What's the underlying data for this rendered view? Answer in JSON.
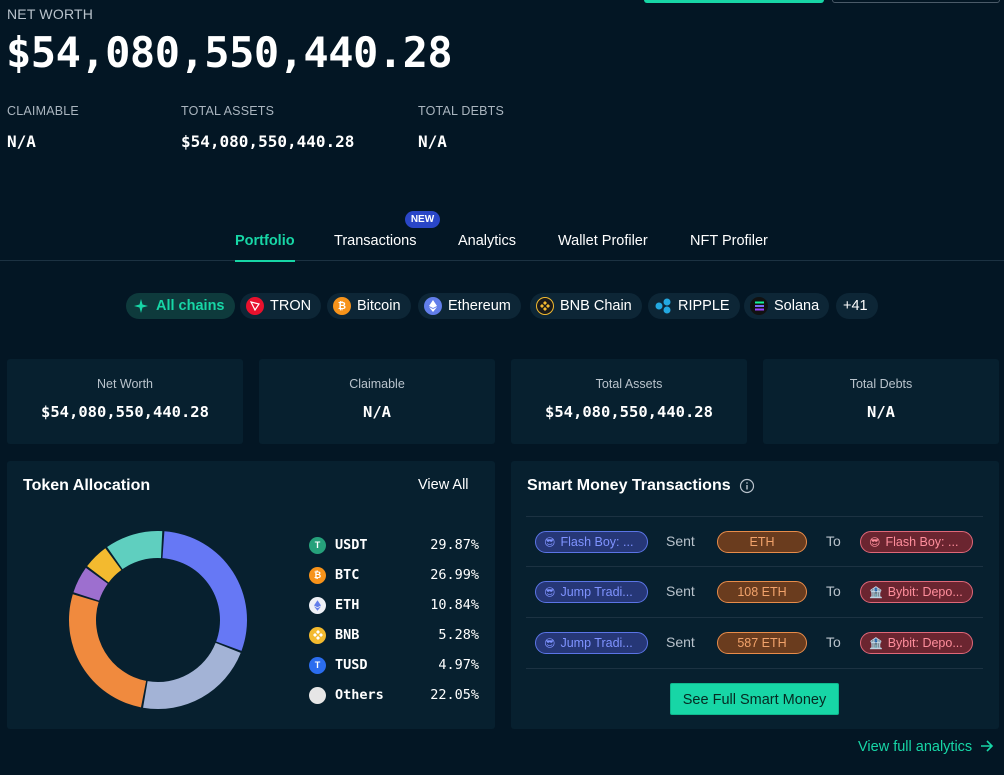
{
  "header": {
    "net_worth_label": "NET WORTH",
    "net_worth_value": "$54,080,550,440.28",
    "claimable_label": "CLAIMABLE",
    "claimable_value": "N/A",
    "total_assets_label": "TOTAL ASSETS",
    "total_assets_value": "$54,080,550,440.28",
    "total_debts_label": "TOTAL DEBTS",
    "total_debts_value": "N/A"
  },
  "tabs": [
    {
      "label": "Portfolio",
      "active": true
    },
    {
      "label": "Transactions",
      "badge": "NEW"
    },
    {
      "label": "Analytics"
    },
    {
      "label": "Wallet Profiler"
    },
    {
      "label": "NFT Profiler"
    }
  ],
  "chains": [
    {
      "label": "All chains",
      "icon": "all-chains-icon",
      "color": "#17d6a6",
      "active": true
    },
    {
      "label": "TRON",
      "icon": "tron-icon",
      "color": "#e8112d"
    },
    {
      "label": "Bitcoin",
      "icon": "bitcoin-icon",
      "color": "#f7931a"
    },
    {
      "label": "Ethereum",
      "icon": "ethereum-icon",
      "color": "#627eea"
    },
    {
      "label": "BNB Chain",
      "icon": "bnb-chain-icon",
      "color": "#f3ba2f"
    },
    {
      "label": "RIPPLE",
      "icon": "ripple-icon",
      "color": "#23a8e0"
    },
    {
      "label": "Solana",
      "icon": "solana-icon",
      "color": "#9945ff"
    },
    {
      "label": "+41"
    }
  ],
  "stat_cards": [
    {
      "label": "Net Worth",
      "value": "$54,080,550,440.28"
    },
    {
      "label": "Claimable",
      "value": "N/A"
    },
    {
      "label": "Total Assets",
      "value": "$54,080,550,440.28"
    },
    {
      "label": "Total Debts",
      "value": "N/A"
    }
  ],
  "token_allocation": {
    "title": "Token Allocation",
    "view_all": "View All",
    "tokens": [
      {
        "symbol": "USDT",
        "percent": "29.87%",
        "value": 29.87,
        "color": "#26a17b",
        "icon": "usdt-icon"
      },
      {
        "symbol": "BTC",
        "percent": "26.99%",
        "value": 26.99,
        "color": "#f7931a",
        "icon": "btc-icon"
      },
      {
        "symbol": "ETH",
        "percent": "10.84%",
        "value": 10.84,
        "color": "#627eea",
        "icon": "eth-icon"
      },
      {
        "symbol": "BNB",
        "percent": "5.28%",
        "value": 5.28,
        "color": "#f3ba2f",
        "icon": "bnb-icon"
      },
      {
        "symbol": "TUSD",
        "percent": "4.97%",
        "value": 4.97,
        "color": "#2b6def",
        "icon": "tusd-icon"
      },
      {
        "symbol": "Others",
        "percent": "22.05%",
        "value": 22.05,
        "color": "#e6e6e6",
        "icon": "others-icon"
      }
    ],
    "donut_colors": [
      "#6678f5",
      "#a3b3d6",
      "#f08a3e",
      "#9d6fcf",
      "#f3ba2f",
      "#5fcfbf"
    ]
  },
  "smart_money": {
    "title": "Smart Money Transactions",
    "info_icon": "info-icon",
    "rows": [
      {
        "from": "Flash Boy: ...",
        "action": "Sent",
        "amount": "ETH",
        "to_word": "To",
        "to": "Flash Boy: ..."
      },
      {
        "from": "Jump Tradi...",
        "action": "Sent",
        "amount": "108 ETH",
        "to_word": "To",
        "to": "Bybit: Depo..."
      },
      {
        "from": "Jump Tradi...",
        "action": "Sent",
        "amount": "587 ETH",
        "to_word": "To",
        "to": "Bybit: Depo..."
      }
    ],
    "button": "See Full Smart Money"
  },
  "footer": {
    "view_full_analytics": "View full analytics"
  }
}
